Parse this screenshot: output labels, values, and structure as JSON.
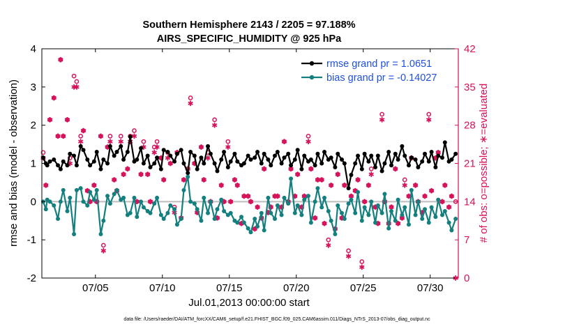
{
  "colors": {
    "rmse": "#000000",
    "bias": "#137f7f",
    "obs": "#d6125b",
    "zero": "#bdbdbd",
    "legend_text": "#1f4fe0"
  },
  "chart_data": {
    "type": "line",
    "title": "Southern Hemisphere 2143 / 2205 = 97.188%",
    "subtitle": "AIRS_SPECIFIC_HUMIDITY @ 925 hPa",
    "xlabel": "Jul.01,2013 00:00:00 start",
    "ylabel": "rmse and bias (model - observation)",
    "y2label": "# of obs: o=possible; ∗=evaluated",
    "xlim": [
      1,
      32.1
    ],
    "ylim": [
      -2,
      4
    ],
    "y2lim": [
      0,
      42
    ],
    "x_ticks": [
      5,
      10,
      15,
      20,
      25,
      30
    ],
    "x_tick_labels": [
      "07/05",
      "07/10",
      "07/15",
      "07/20",
      "07/25",
      "07/30"
    ],
    "y_ticks": [
      -2,
      -1,
      0,
      1,
      2,
      3,
      4
    ],
    "y_tick_labels": [
      "-2",
      "-1",
      "0",
      "1",
      "2",
      "3",
      "4"
    ],
    "y2_ticks": [
      0,
      7,
      14,
      21,
      28,
      35,
      42
    ],
    "y2_tick_labels": [
      "0",
      "7",
      "14",
      "21",
      "28",
      "35",
      "42"
    ],
    "legend_position": "top-right",
    "series": [
      {
        "name": "rmse grand pr = 1.0651",
        "axis": "left",
        "style": "line-marker",
        "x": [
          1.1,
          1.3,
          1.4,
          1.6,
          1.9,
          2.2,
          2.4,
          2.6,
          2.9,
          3.1,
          3.4,
          3.6,
          3.9,
          4.1,
          4.4,
          4.6,
          4.9,
          5.1,
          5.4,
          5.6,
          5.9,
          6.1,
          6.4,
          6.6,
          6.9,
          7.1,
          7.4,
          7.6,
          7.9,
          8.1,
          8.4,
          8.6,
          8.9,
          9.1,
          9.4,
          9.6,
          9.9,
          10.1,
          10.4,
          10.6,
          10.9,
          11.1,
          11.4,
          11.6,
          11.9,
          12.1,
          12.4,
          12.6,
          12.9,
          13.1,
          13.4,
          13.6,
          13.9,
          14.1,
          14.4,
          14.6,
          14.9,
          15.1,
          15.4,
          15.6,
          15.9,
          16.1,
          16.4,
          16.6,
          16.9,
          17.1,
          17.4,
          17.6,
          17.9,
          18.1,
          18.4,
          18.6,
          18.9,
          19.1,
          19.4,
          19.6,
          19.9,
          20.1,
          20.4,
          20.6,
          20.9,
          21.1,
          21.4,
          21.6,
          21.9,
          22.1,
          22.4,
          22.6,
          22.9,
          23.1,
          23.4,
          23.6,
          23.9,
          24.1,
          24.4,
          24.6,
          24.9,
          25.1,
          25.4,
          25.6,
          25.9,
          26.1,
          26.4,
          26.6,
          26.9,
          27.1,
          27.4,
          27.6,
          27.9,
          28.1,
          28.4,
          28.6,
          28.9,
          29.1,
          29.4,
          29.6,
          29.9,
          30.1,
          30.4,
          30.6,
          30.9,
          31.1,
          31.4,
          31.6,
          31.9
        ],
        "values": [
          1.15,
          1.0,
          0.95,
          1.05,
          1.1,
          0.95,
          0.85,
          1.05,
          0.95,
          1.25,
          1.2,
          0.95,
          1.45,
          1.35,
          1.1,
          0.95,
          1.05,
          1.3,
          0.85,
          1.1,
          1.0,
          1.45,
          1.2,
          1.3,
          1.45,
          1.1,
          1.3,
          1.7,
          1.05,
          1.1,
          1.4,
          1.0,
          1.2,
          0.9,
          1.0,
          1.15,
          0.85,
          1.35,
          1.3,
          1.2,
          1.05,
          1.25,
          1.35,
          1.0,
          0.75,
          1.3,
          1.2,
          0.85,
          1.15,
          1.0,
          1.45,
          1.25,
          1.0,
          0.8,
          1.1,
          1.3,
          0.9,
          1.05,
          1.25,
          1.05,
          0.95,
          1.0,
          1.2,
          1.1,
          1.15,
          1.3,
          1.0,
          1.25,
          1.1,
          0.95,
          1.2,
          1.3,
          1.0,
          1.15,
          1.25,
          0.95,
          1.1,
          1.35,
          0.85,
          1.2,
          1.05,
          1.1,
          0.95,
          1.25,
          1.0,
          1.3,
          1.1,
          1.15,
          0.9,
          1.25,
          1.1,
          1.0,
          0.35,
          0.7,
          1.0,
          1.2,
          0.85,
          1.25,
          1.05,
          1.2,
          0.9,
          1.2,
          0.8,
          1.0,
          1.3,
          0.95,
          1.25,
          1.1,
          1.45,
          1.2,
          0.95,
          1.15,
          1.1,
          0.9,
          1.05,
          1.25,
          1.05,
          1.3,
          0.9,
          1.2,
          1.15,
          1.55,
          1.05,
          1.1,
          1.25
        ]
      },
      {
        "name": "bias grand pr = -0.14027",
        "axis": "left",
        "style": "line-marker",
        "x": [
          1.1,
          1.3,
          1.4,
          1.6,
          1.9,
          2.2,
          2.4,
          2.6,
          2.9,
          3.1,
          3.4,
          3.6,
          3.9,
          4.1,
          4.4,
          4.6,
          4.9,
          5.1,
          5.4,
          5.6,
          5.9,
          6.1,
          6.4,
          6.6,
          6.9,
          7.1,
          7.4,
          7.6,
          7.9,
          8.1,
          8.4,
          8.6,
          8.9,
          9.1,
          9.4,
          9.6,
          9.9,
          10.1,
          10.4,
          10.6,
          10.9,
          11.1,
          11.4,
          11.6,
          11.9,
          12.1,
          12.4,
          12.6,
          12.9,
          13.1,
          13.4,
          13.6,
          13.9,
          14.1,
          14.4,
          14.6,
          14.9,
          15.1,
          15.4,
          15.6,
          15.9,
          16.1,
          16.4,
          16.6,
          16.9,
          17.1,
          17.4,
          17.6,
          17.9,
          18.1,
          18.4,
          18.6,
          18.9,
          19.1,
          19.4,
          19.6,
          19.9,
          20.1,
          20.4,
          20.6,
          20.9,
          21.1,
          21.4,
          21.6,
          21.9,
          22.1,
          22.4,
          22.6,
          22.9,
          23.1,
          23.4,
          23.6,
          23.9,
          24.1,
          24.4,
          24.6,
          24.9,
          25.1,
          25.4,
          25.6,
          25.9,
          26.1,
          26.4,
          26.6,
          26.9,
          27.1,
          27.4,
          27.6,
          27.9,
          28.1,
          28.4,
          28.6,
          28.9,
          29.1,
          29.4,
          29.6,
          29.9,
          30.1,
          30.4,
          30.6,
          30.9,
          31.1,
          31.4,
          31.6,
          31.9
        ],
        "values": [
          0.0,
          -0.2,
          0.05,
          0.0,
          -0.1,
          -0.45,
          0.0,
          0.3,
          -0.25,
          0.1,
          -0.85,
          0.3,
          0.35,
          0.0,
          -0.1,
          0.25,
          0.05,
          0.3,
          -0.85,
          -0.5,
          0.15,
          -0.05,
          0.2,
          0.3,
          0.05,
          0.1,
          -0.35,
          -0.3,
          0.1,
          -0.4,
          0.0,
          -0.15,
          -0.25,
          -0.3,
          -0.05,
          0.1,
          -0.35,
          -0.45,
          -0.3,
          -0.1,
          -0.2,
          -0.6,
          -0.45,
          0.3,
          0.65,
          0.0,
          -0.05,
          -0.2,
          -0.5,
          0.1,
          -0.3,
          0.0,
          -0.45,
          -0.2,
          0.05,
          -0.25,
          -0.35,
          -0.3,
          -0.5,
          -0.55,
          -0.4,
          -0.55,
          -0.7,
          -0.8,
          -0.45,
          -0.65,
          -0.3,
          -0.75,
          0.1,
          -0.3,
          -0.45,
          -0.1,
          -0.35,
          0.1,
          -0.05,
          0.6,
          -0.3,
          -0.1,
          -0.35,
          0.05,
          0.15,
          -0.55,
          0.0,
          0.35,
          -0.15,
          0.1,
          -0.25,
          -0.5,
          -0.85,
          -0.1,
          -0.3,
          -0.45,
          -0.05,
          0.05,
          -0.3,
          0.25,
          -0.5,
          -0.15,
          -0.35,
          0.0,
          -0.55,
          -0.1,
          -0.3,
          0.2,
          -0.7,
          -0.25,
          -0.5,
          0.05,
          -0.35,
          -0.15,
          -0.6,
          0.3,
          -0.35,
          0.0,
          -0.45,
          -0.2,
          -0.55,
          -0.15,
          -0.4,
          0.05,
          -0.35,
          -0.25,
          -0.55,
          -0.75,
          -0.45
        ]
      },
      {
        "name": "possible",
        "axis": "right",
        "style": "marker-o",
        "x": [
          1.1,
          1.3,
          1.6,
          1.9,
          2.2,
          2.4,
          2.6,
          2.9,
          3.1,
          3.4,
          3.6,
          3.9,
          4.1,
          4.4,
          4.6,
          4.9,
          5.1,
          5.4,
          5.6,
          5.9,
          6.1,
          6.4,
          6.6,
          6.9,
          7.1,
          7.4,
          7.6,
          7.9,
          8.1,
          8.4,
          8.6,
          8.9,
          9.1,
          9.4,
          9.6,
          9.9,
          10.1,
          10.4,
          10.6,
          10.9,
          11.1,
          11.4,
          11.6,
          11.9,
          12.1,
          12.4,
          12.6,
          12.9,
          13.1,
          13.4,
          13.6,
          13.9,
          14.1,
          14.4,
          14.6,
          14.9,
          15.1,
          15.4,
          15.6,
          15.9,
          16.1,
          16.4,
          16.6,
          16.9,
          17.1,
          17.4,
          17.6,
          17.9,
          18.1,
          18.4,
          18.6,
          18.9,
          19.1,
          19.4,
          19.6,
          19.9,
          20.1,
          20.4,
          20.6,
          20.9,
          21.1,
          21.4,
          21.6,
          21.9,
          22.1,
          22.4,
          22.6,
          22.9,
          23.1,
          23.4,
          23.6,
          23.9,
          24.1,
          24.4,
          24.6,
          24.9,
          25.1,
          25.4,
          25.6,
          25.9,
          26.1,
          26.4,
          26.6,
          26.9,
          27.1,
          27.4,
          27.6,
          27.9,
          28.1,
          28.4,
          28.6,
          28.9,
          29.1,
          29.4,
          29.6,
          29.9,
          30.1,
          30.4,
          30.6,
          30.9,
          31.1,
          31.4,
          31.6,
          31.9
        ],
        "values": [
          23,
          17,
          29,
          33,
          26,
          40,
          26,
          29,
          22,
          37,
          36,
          26,
          27,
          16,
          14,
          17,
          14,
          26,
          6,
          24,
          26,
          18,
          16,
          26,
          19,
          20,
          26,
          27,
          14,
          19,
          25,
          19,
          14,
          24,
          25,
          22,
          18,
          23,
          21,
          13,
          23,
          11,
          18,
          20,
          33,
          21,
          12,
          24,
          18,
          23,
          14,
          29,
          11,
          17,
          14,
          25,
          14,
          18,
          17,
          10,
          15,
          15,
          14,
          9,
          13,
          11,
          20,
          12,
          13,
          15,
          15,
          13,
          25,
          14,
          20,
          15,
          19,
          13,
          15,
          26,
          20,
          11,
          18,
          18,
          10,
          7,
          17,
          9,
          19,
          11,
          17,
          5,
          15,
          16,
          18,
          3,
          14,
          17,
          20,
          13,
          10,
          30,
          14,
          10,
          13,
          20,
          10,
          11,
          18,
          15,
          22,
          17,
          14,
          12,
          15,
          30,
          16,
          22,
          23,
          14,
          17,
          13,
          15,
          14
        ]
      },
      {
        "name": "evaluated",
        "axis": "right",
        "style": "marker-star",
        "x": [
          1.1,
          1.3,
          1.6,
          1.9,
          2.2,
          2.4,
          2.6,
          2.9,
          3.1,
          3.4,
          3.6,
          3.9,
          4.1,
          4.4,
          4.6,
          4.9,
          5.1,
          5.4,
          5.6,
          5.9,
          6.1,
          6.4,
          6.6,
          6.9,
          7.1,
          7.4,
          7.6,
          7.9,
          8.1,
          8.4,
          8.6,
          8.9,
          9.1,
          9.4,
          9.6,
          9.9,
          10.1,
          10.4,
          10.6,
          10.9,
          11.1,
          11.4,
          11.6,
          11.9,
          12.1,
          12.4,
          12.6,
          12.9,
          13.1,
          13.4,
          13.6,
          13.9,
          14.1,
          14.4,
          14.6,
          14.9,
          15.1,
          15.4,
          15.6,
          15.9,
          16.1,
          16.4,
          16.6,
          16.9,
          17.1,
          17.4,
          17.6,
          17.9,
          18.1,
          18.4,
          18.6,
          18.9,
          19.1,
          19.4,
          19.6,
          19.9,
          20.1,
          20.4,
          20.6,
          20.9,
          21.1,
          21.4,
          21.6,
          21.9,
          22.1,
          22.4,
          22.6,
          22.9,
          23.1,
          23.4,
          23.6,
          23.9,
          24.1,
          24.4,
          24.6,
          24.9,
          25.1,
          25.4,
          25.6,
          25.9,
          26.1,
          26.4,
          26.6,
          26.9,
          27.1,
          27.4,
          27.6,
          27.9,
          28.1,
          28.4,
          28.6,
          28.9,
          29.1,
          29.4,
          29.6,
          29.9,
          30.1,
          30.4,
          30.6,
          30.9,
          31.1,
          31.4,
          31.6,
          31.9
        ],
        "values": [
          22,
          17,
          29,
          33,
          26,
          40,
          26,
          29,
          21,
          35,
          35,
          25,
          27,
          16,
          14,
          17,
          14,
          26,
          5,
          24,
          25,
          18,
          16,
          25,
          19,
          20,
          25,
          26,
          14,
          19,
          24,
          19,
          14,
          23,
          24,
          22,
          18,
          22,
          21,
          12,
          23,
          11,
          18,
          20,
          32,
          21,
          12,
          24,
          18,
          22,
          14,
          28,
          11,
          17,
          14,
          24,
          14,
          18,
          17,
          10,
          15,
          15,
          14,
          9,
          13,
          11,
          20,
          12,
          13,
          15,
          15,
          13,
          25,
          14,
          20,
          15,
          19,
          13,
          15,
          25,
          20,
          11,
          18,
          18,
          10,
          6,
          17,
          9,
          19,
          11,
          17,
          4,
          15,
          16,
          18,
          2,
          14,
          17,
          19,
          13,
          10,
          29,
          14,
          10,
          13,
          20,
          10,
          11,
          17,
          15,
          22,
          17,
          14,
          12,
          15,
          29,
          16,
          22,
          23,
          14,
          17,
          13,
          15,
          0
        ]
      }
    ],
    "footnote": "data file: /Users/raeder/DAI/ATM_forcXX/CAM6_setup/f.e21.FHIST_BGC.f09_025.CAM6assim.011/Diags_NTrS_2013-07/obs_diag_output.nc"
  }
}
